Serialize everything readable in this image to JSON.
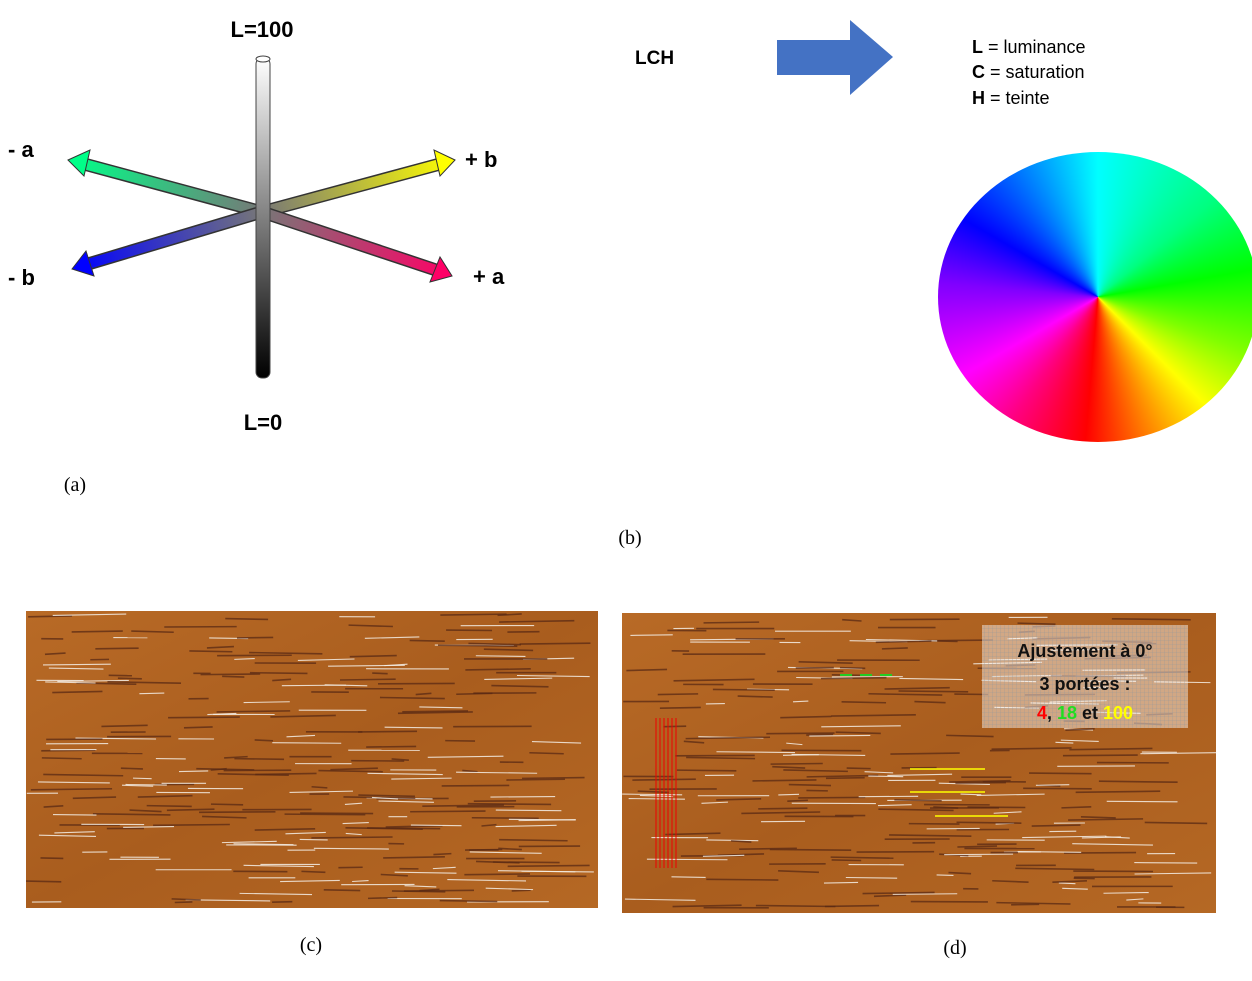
{
  "panel_a": {
    "l_top": "L=100",
    "l_bottom": "L=0",
    "minus_a": "- a",
    "plus_b": "+ b",
    "minus_b": "- b",
    "plus_a": "+ a",
    "caption": "(a)"
  },
  "panel_b": {
    "model": "LCH",
    "legend": [
      {
        "key": "L",
        "text": " = luminance"
      },
      {
        "key": "C",
        "text": " = saturation"
      },
      {
        "key": "H",
        "text": " = teinte"
      }
    ],
    "caption": "(b)"
  },
  "panel_c": {
    "caption": "(c)"
  },
  "panel_d": {
    "overlay": {
      "line1": "Ajustement à 0°",
      "line2": "3 portées :",
      "line3": [
        "4",
        ", ",
        "18",
        " et ",
        "100"
      ]
    },
    "caption": "(d)"
  }
}
